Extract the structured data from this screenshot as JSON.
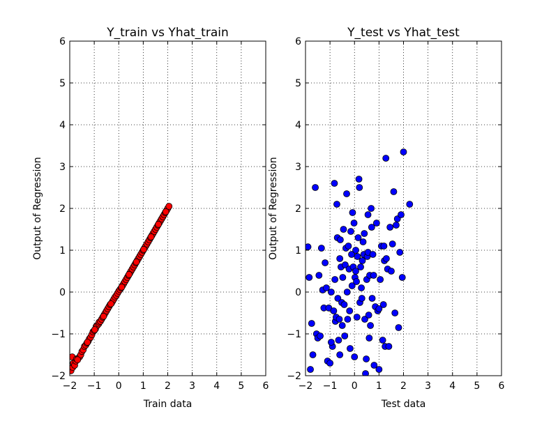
{
  "chart_data": [
    {
      "type": "scatter",
      "title": "Y_train vs Yhat_train",
      "xlabel": "Train data",
      "ylabel": "Output of Regression",
      "xlim": [
        -2,
        6
      ],
      "ylim": [
        -2,
        6
      ],
      "xticks": [
        "−2",
        "−1",
        "0",
        "1",
        "2",
        "3",
        "4",
        "5",
        "6"
      ],
      "yticks": [
        "−2",
        "−1",
        "0",
        "1",
        "2",
        "3",
        "4",
        "5",
        "6"
      ],
      "grid": true,
      "marker_color": "#ff0000",
      "series": [
        {
          "points": [
            [
              -1.95,
              -1.88
            ],
            [
              -1.9,
              -1.55
            ],
            [
              -1.88,
              -1.8
            ],
            [
              -1.85,
              -1.7
            ],
            [
              -1.8,
              -1.75
            ],
            [
              -1.75,
              -1.65
            ],
            [
              -1.72,
              -1.6
            ],
            [
              -1.65,
              -1.58
            ],
            [
              -1.6,
              -1.55
            ],
            [
              -1.55,
              -1.5
            ],
            [
              -1.5,
              -1.42
            ],
            [
              -1.45,
              -1.38
            ],
            [
              -1.4,
              -1.3
            ],
            [
              -1.35,
              -1.27
            ],
            [
              -1.3,
              -1.22
            ],
            [
              -1.25,
              -1.18
            ],
            [
              -1.2,
              -1.12
            ],
            [
              -1.15,
              -1.08
            ],
            [
              -1.1,
              -1.02
            ],
            [
              -1.05,
              -0.95
            ],
            [
              -1.0,
              -0.92
            ],
            [
              -0.95,
              -0.88
            ],
            [
              -0.92,
              -0.82
            ],
            [
              -0.88,
              -0.8
            ],
            [
              -0.82,
              -0.76
            ],
            [
              -0.8,
              -0.72
            ],
            [
              -0.75,
              -0.7
            ],
            [
              -0.7,
              -0.65
            ],
            [
              -0.65,
              -0.6
            ],
            [
              -0.6,
              -0.55
            ],
            [
              -0.55,
              -0.5
            ],
            [
              -0.5,
              -0.45
            ],
            [
              -0.45,
              -0.4
            ],
            [
              -0.4,
              -0.35
            ],
            [
              -0.35,
              -0.3
            ],
            [
              -0.3,
              -0.27
            ],
            [
              -0.25,
              -0.22
            ],
            [
              -0.2,
              -0.17
            ],
            [
              -0.15,
              -0.12
            ],
            [
              -0.1,
              -0.08
            ],
            [
              -0.05,
              -0.03
            ],
            [
              0.0,
              0.02
            ],
            [
              0.05,
              0.06
            ],
            [
              0.1,
              0.1
            ],
            [
              0.15,
              0.15
            ],
            [
              0.2,
              0.2
            ],
            [
              0.25,
              0.25
            ],
            [
              0.3,
              0.3
            ],
            [
              0.35,
              0.35
            ],
            [
              0.4,
              0.4
            ],
            [
              0.45,
              0.45
            ],
            [
              0.5,
              0.5
            ],
            [
              0.55,
              0.55
            ],
            [
              0.6,
              0.6
            ],
            [
              0.65,
              0.65
            ],
            [
              0.7,
              0.7
            ],
            [
              0.75,
              0.75
            ],
            [
              0.8,
              0.8
            ],
            [
              0.85,
              0.85
            ],
            [
              0.9,
              0.9
            ],
            [
              0.95,
              0.95
            ],
            [
              1.0,
              1.0
            ],
            [
              1.05,
              1.05
            ],
            [
              1.1,
              1.1
            ],
            [
              1.15,
              1.15
            ],
            [
              1.2,
              1.2
            ],
            [
              1.25,
              1.25
            ],
            [
              1.3,
              1.3
            ],
            [
              1.35,
              1.35
            ],
            [
              1.4,
              1.4
            ],
            [
              1.45,
              1.45
            ],
            [
              1.5,
              1.5
            ],
            [
              1.55,
              1.55
            ],
            [
              1.6,
              1.6
            ],
            [
              1.65,
              1.65
            ],
            [
              1.7,
              1.7
            ],
            [
              1.75,
              1.75
            ],
            [
              1.8,
              1.8
            ],
            [
              1.85,
              1.85
            ],
            [
              1.9,
              1.9
            ],
            [
              1.95,
              1.95
            ],
            [
              2.0,
              2.0
            ],
            [
              2.05,
              2.05
            ],
            [
              -1.68,
              -1.62
            ],
            [
              -1.28,
              -1.2
            ],
            [
              -0.98,
              -0.9
            ],
            [
              -0.62,
              -0.58
            ],
            [
              -0.32,
              -0.28
            ],
            [
              0.12,
              0.12
            ],
            [
              0.42,
              0.42
            ],
            [
              0.72,
              0.72
            ],
            [
              1.02,
              1.02
            ],
            [
              1.32,
              1.32
            ],
            [
              1.62,
              1.62
            ],
            [
              1.92,
              1.92
            ]
          ]
        }
      ]
    },
    {
      "type": "scatter",
      "title": "Y_test vs Yhat_test",
      "xlabel": "Test data",
      "ylabel": "Output of Regression",
      "xlim": [
        -2,
        6
      ],
      "ylim": [
        -2,
        6
      ],
      "xticks": [
        "−2",
        "−1",
        "0",
        "1",
        "2",
        "3",
        "4",
        "5",
        "6"
      ],
      "yticks": [
        "−2",
        "−1",
        "0",
        "1",
        "2",
        "3",
        "4",
        "5",
        "6"
      ],
      "grid": true,
      "marker_color": "#0000ff",
      "series": [
        {
          "points": [
            [
              -1.9,
              1.08
            ],
            [
              -1.85,
              0.35
            ],
            [
              -1.8,
              -1.85
            ],
            [
              -1.75,
              -0.75
            ],
            [
              -1.7,
              -1.5
            ],
            [
              -1.6,
              2.5
            ],
            [
              -1.55,
              -1.0
            ],
            [
              -1.5,
              -1.1
            ],
            [
              -1.45,
              0.4
            ],
            [
              -1.4,
              -1.05
            ],
            [
              -1.35,
              1.05
            ],
            [
              -1.3,
              0.05
            ],
            [
              -1.25,
              -0.38
            ],
            [
              -1.2,
              0.7
            ],
            [
              -1.15,
              0.1
            ],
            [
              -1.1,
              -1.65
            ],
            [
              -1.05,
              -0.38
            ],
            [
              -1.0,
              -1.7
            ],
            [
              -0.95,
              0.0
            ],
            [
              -0.9,
              -1.3
            ],
            [
              -0.85,
              -0.45
            ],
            [
              -0.82,
              2.6
            ],
            [
              -0.8,
              0.3
            ],
            [
              -0.78,
              -0.7
            ],
            [
              -0.75,
              -0.6
            ],
            [
              -0.72,
              2.1
            ],
            [
              -0.7,
              1.3
            ],
            [
              -0.68,
              -0.15
            ],
            [
              -0.65,
              -1.15
            ],
            [
              -0.62,
              -0.65
            ],
            [
              -0.6,
              0.8
            ],
            [
              -0.58,
              1.25
            ],
            [
              -0.55,
              0.6
            ],
            [
              -0.52,
              -0.25
            ],
            [
              -0.5,
              -0.8
            ],
            [
              -0.48,
              0.35
            ],
            [
              -0.45,
              1.5
            ],
            [
              -0.42,
              -0.3
            ],
            [
              -0.4,
              -1.05
            ],
            [
              -0.38,
              0.65
            ],
            [
              -0.35,
              1.05
            ],
            [
              -0.32,
              2.35
            ],
            [
              -0.3,
              0.0
            ],
            [
              -0.28,
              -0.65
            ],
            [
              -0.25,
              1.1
            ],
            [
              -0.22,
              0.55
            ],
            [
              -0.2,
              -0.45
            ],
            [
              -0.18,
              -1.35
            ],
            [
              -0.15,
              1.45
            ],
            [
              -0.12,
              0.9
            ],
            [
              -0.1,
              0.15
            ],
            [
              -0.08,
              1.9
            ],
            [
              -0.05,
              0.6
            ],
            [
              -0.02,
              1.65
            ],
            [
              0.0,
              -1.55
            ],
            [
              0.02,
              0.35
            ],
            [
              0.05,
              1.0
            ],
            [
              0.08,
              0.25
            ],
            [
              0.1,
              -0.6
            ],
            [
              0.12,
              0.85
            ],
            [
              0.15,
              1.3
            ],
            [
              0.18,
              2.7
            ],
            [
              0.2,
              2.5
            ],
            [
              0.22,
              -0.25
            ],
            [
              0.25,
              0.6
            ],
            [
              0.28,
              0.1
            ],
            [
              0.3,
              -0.15
            ],
            [
              0.32,
              0.75
            ],
            [
              0.35,
              1.2
            ],
            [
              0.38,
              0.9
            ],
            [
              0.4,
              1.4
            ],
            [
              0.42,
              -0.65
            ],
            [
              0.45,
              -1.95
            ],
            [
              0.48,
              -1.6
            ],
            [
              0.5,
              0.3
            ],
            [
              0.52,
              0.85
            ],
            [
              0.55,
              0.95
            ],
            [
              0.58,
              -0.55
            ],
            [
              0.6,
              -1.1
            ],
            [
              0.62,
              0.4
            ],
            [
              0.65,
              -0.8
            ],
            [
              0.68,
              2.0
            ],
            [
              0.7,
              1.55
            ],
            [
              0.72,
              -0.15
            ],
            [
              0.75,
              0.9
            ],
            [
              0.78,
              0.4
            ],
            [
              0.8,
              -1.75
            ],
            [
              0.85,
              -0.35
            ],
            [
              0.9,
              1.65
            ],
            [
              0.95,
              -0.45
            ],
            [
              1.0,
              -1.85
            ],
            [
              1.05,
              0.3
            ],
            [
              1.1,
              1.1
            ],
            [
              1.15,
              -1.15
            ],
            [
              1.18,
              -0.3
            ],
            [
              1.2,
              1.1
            ],
            [
              1.22,
              0.75
            ],
            [
              1.25,
              -1.3
            ],
            [
              1.28,
              3.2
            ],
            [
              1.3,
              0.8
            ],
            [
              1.35,
              0.55
            ],
            [
              1.4,
              -1.3
            ],
            [
              1.45,
              1.55
            ],
            [
              1.5,
              0.5
            ],
            [
              1.55,
              1.15
            ],
            [
              1.6,
              2.4
            ],
            [
              1.65,
              -0.5
            ],
            [
              1.7,
              1.6
            ],
            [
              1.75,
              1.75
            ],
            [
              1.8,
              -0.85
            ],
            [
              1.85,
              0.95
            ],
            [
              1.9,
              1.85
            ],
            [
              1.95,
              0.35
            ],
            [
              2.0,
              3.35
            ],
            [
              2.25,
              2.1
            ],
            [
              -0.95,
              -1.2
            ],
            [
              -0.6,
              -1.5
            ],
            [
              0.05,
              0.5
            ],
            [
              0.55,
              1.85
            ],
            [
              1.0,
              -0.4
            ]
          ]
        }
      ]
    }
  ]
}
